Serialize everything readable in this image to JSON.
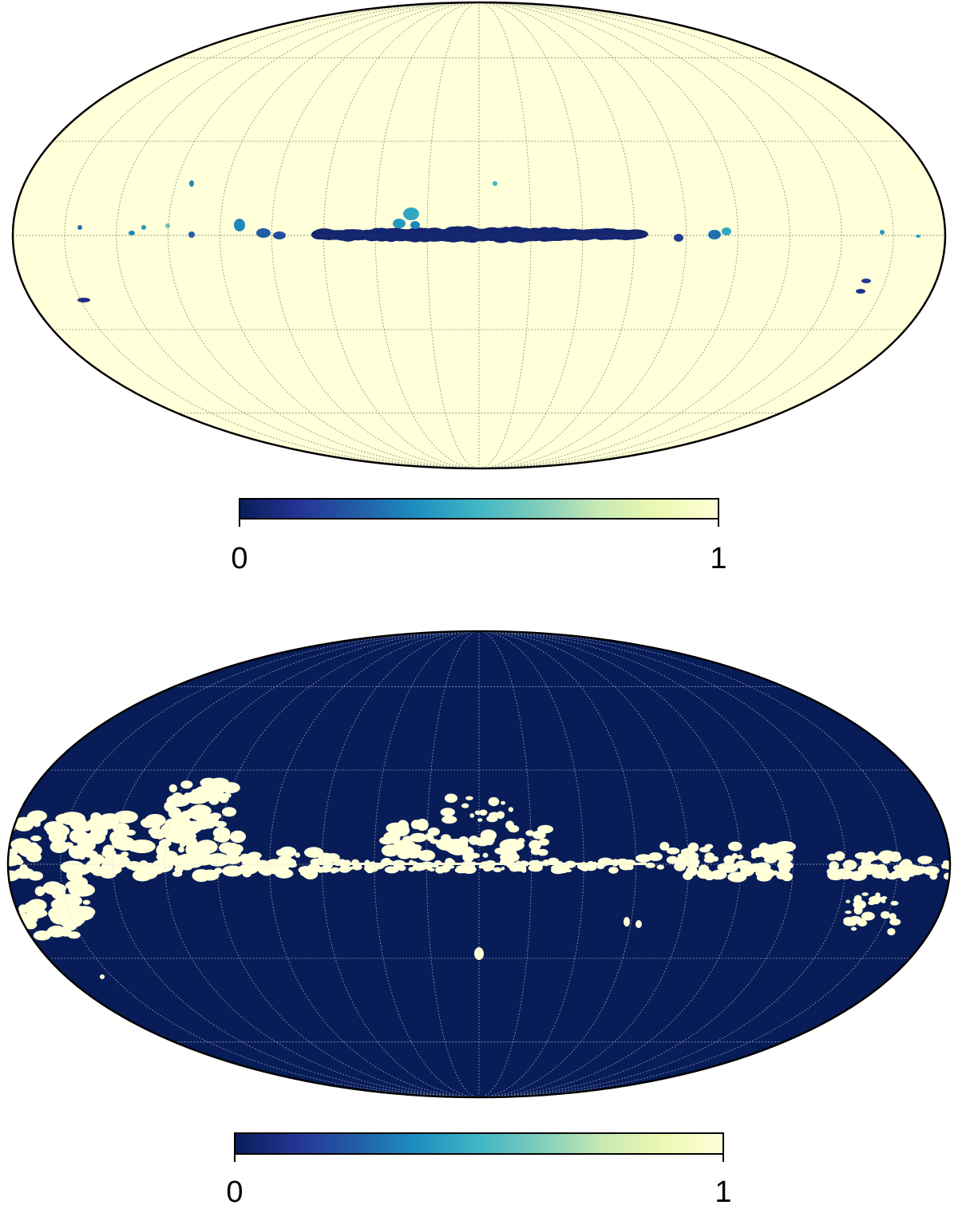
{
  "chart_data": [
    {
      "type": "heatmap",
      "projection": "mollweide",
      "background_value": 1,
      "grid": true,
      "colormap": [
        "#081d58",
        "#253494",
        "#225ea8",
        "#1d91c0",
        "#41b6c4",
        "#7fcdbb",
        "#c7e9b4",
        "#edf8b1",
        "#ffffd9"
      ],
      "colorbar": {
        "min": 0,
        "max": 1,
        "tick_labels": [
          "0",
          "1"
        ]
      }
    },
    {
      "type": "heatmap",
      "projection": "mollweide",
      "background_value": 0,
      "grid": true,
      "colormap": [
        "#081d58",
        "#253494",
        "#225ea8",
        "#1d91c0",
        "#41b6c4",
        "#7fcdbb",
        "#c7e9b4",
        "#edf8b1",
        "#ffffd9"
      ],
      "colorbar": {
        "min": 0,
        "max": 1,
        "tick_labels": [
          "0",
          "1"
        ]
      }
    }
  ]
}
